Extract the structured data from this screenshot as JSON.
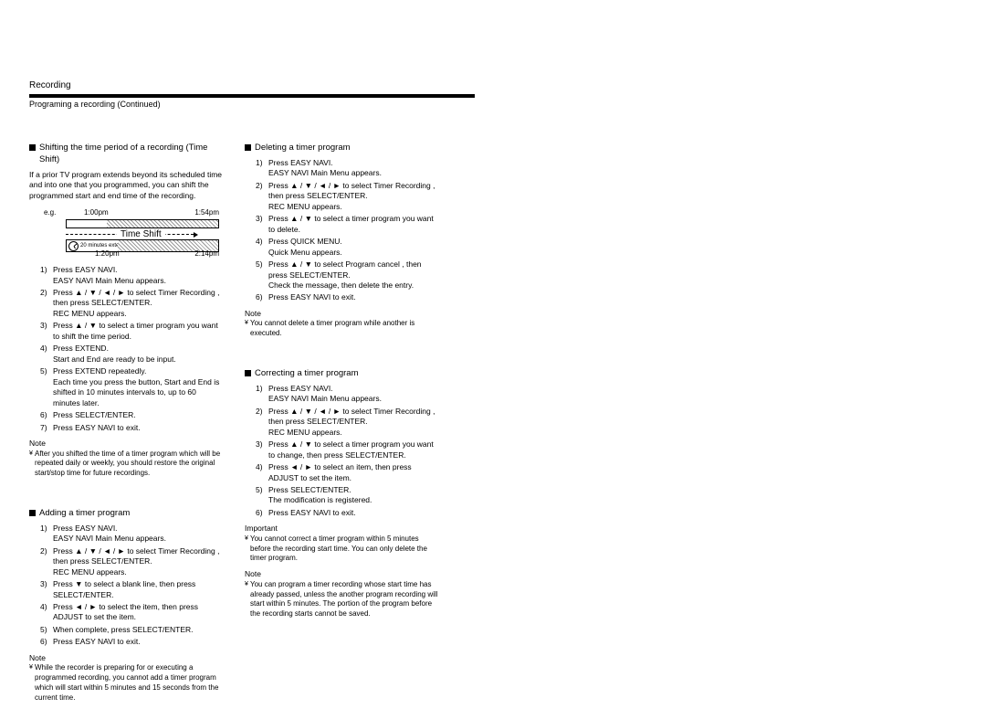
{
  "header": {
    "section": "Recording",
    "subtitle": "Programing a recording (Continued)"
  },
  "diagram": {
    "eg": "e.g.",
    "t1a": "1:00pm",
    "t1b": "1:54pm",
    "t2a": "1:20pm",
    "t2b": "2:14pm",
    "label": "Time Shift",
    "extend": "20 minutes extend"
  },
  "left": {
    "shift": {
      "title": "Shifting the time period of a recording (Time Shift)",
      "intro": "If a prior TV program extends beyond its scheduled time and into one that you programmed, you can shift the programmed start and end time of the recording.",
      "steps": [
        {
          "n": "1)",
          "a": "Press EASY NAVI.",
          "b": "EASY NAVI Main Menu appears."
        },
        {
          "n": "2)",
          "a": "Press ▲ / ▼ / ◄ / ► to select    Timer Recording    , then press SELECT/ENTER.",
          "b": "REC MENU appears."
        },
        {
          "n": "3)",
          "a": "Press ▲ / ▼ to select a timer program you want to shift the time period."
        },
        {
          "n": "4)",
          "a": "Press EXTEND.",
          "b": "Start   and   End   are ready to be input."
        },
        {
          "n": "5)",
          "a": "Press EXTEND repeatedly.",
          "b": "Each time you press the button,   Start   and   End   is shifted in 10 minutes intervals to, up to 60 minutes later."
        },
        {
          "n": "6)",
          "a": "Press SELECT/ENTER."
        },
        {
          "n": "7)",
          "a": "Press EASY NAVI to exit."
        }
      ],
      "note_h": "Note",
      "note": "After you shifted the time of a timer program which will be repeated daily or weekly, you should restore the original start/stop time for future recordings."
    },
    "add": {
      "title": "Adding a timer program",
      "steps": [
        {
          "n": "1)",
          "a": "Press EASY NAVI.",
          "b": "EASY NAVI Main Menu appears."
        },
        {
          "n": "2)",
          "a": "Press ▲ / ▼ / ◄ / ► to select    Timer Recording    , then press SELECT/ENTER.",
          "b": "REC MENU appears."
        },
        {
          "n": "3)",
          "a": "Press ▼ to select a blank line, then press SELECT/ENTER."
        },
        {
          "n": "4)",
          "a": "Press ◄ / ► to select the item, then press ADJUST to set the item."
        },
        {
          "n": "5)",
          "a": "When complete, press SELECT/ENTER."
        },
        {
          "n": "6)",
          "a": "Press EASY NAVI to exit."
        }
      ],
      "note_h": "Note",
      "note": "While the recorder is preparing for or executing a programmed recording, you cannot add a timer program which will start within 5 minutes and 15 seconds from the current time."
    }
  },
  "right": {
    "del": {
      "title": "Deleting a timer program",
      "steps": [
        {
          "n": "1)",
          "a": "Press EASY NAVI.",
          "b": "EASY NAVI Main Menu appears."
        },
        {
          "n": "2)",
          "a": "Press ▲ / ▼ / ◄ / ► to select    Timer Recording    , then press SELECT/ENTER.",
          "b": "REC MENU appears."
        },
        {
          "n": "3)",
          "a": "Press ▲ / ▼ to select a timer program you want to delete."
        },
        {
          "n": "4)",
          "a": "Press QUICK MENU.",
          "b": "Quick Menu appears."
        },
        {
          "n": "5)",
          "a": "Press ▲ / ▼ to select    Program cancel   , then press SELECT/ENTER.",
          "b": "Check the message, then delete the entry."
        },
        {
          "n": "6)",
          "a": "Press EASY NAVI to exit."
        }
      ],
      "note_h": "Note",
      "note": "You cannot delete a timer program while another is executed."
    },
    "cor": {
      "title": "Correcting a timer program",
      "steps": [
        {
          "n": "1)",
          "a": "Press EASY NAVI.",
          "b": "EASY NAVI Main Menu appears."
        },
        {
          "n": "2)",
          "a": "Press ▲ / ▼ / ◄ / ► to select    Timer Recording    , then press SELECT/ENTER.",
          "b": "REC MENU appears."
        },
        {
          "n": "3)",
          "a": "Press ▲ / ▼ to select a timer program you want to change, then press SELECT/ENTER."
        },
        {
          "n": "4)",
          "a": "Press ◄ / ► to select an item, then press ADJUST to set the item."
        },
        {
          "n": "5)",
          "a": "Press SELECT/ENTER.",
          "b": "The modification is registered."
        },
        {
          "n": "6)",
          "a": "Press EASY NAVI to exit."
        }
      ],
      "imp_h": "Important",
      "imp": "You cannot correct a timer program within 5 minutes before the recording start time. You can only delete the timer program.",
      "note_h": "Note",
      "note": "You can program a timer recording whose start time has already passed, unless the another program recording will start within 5 minutes. The portion of the program before the recording starts cannot be saved."
    }
  }
}
